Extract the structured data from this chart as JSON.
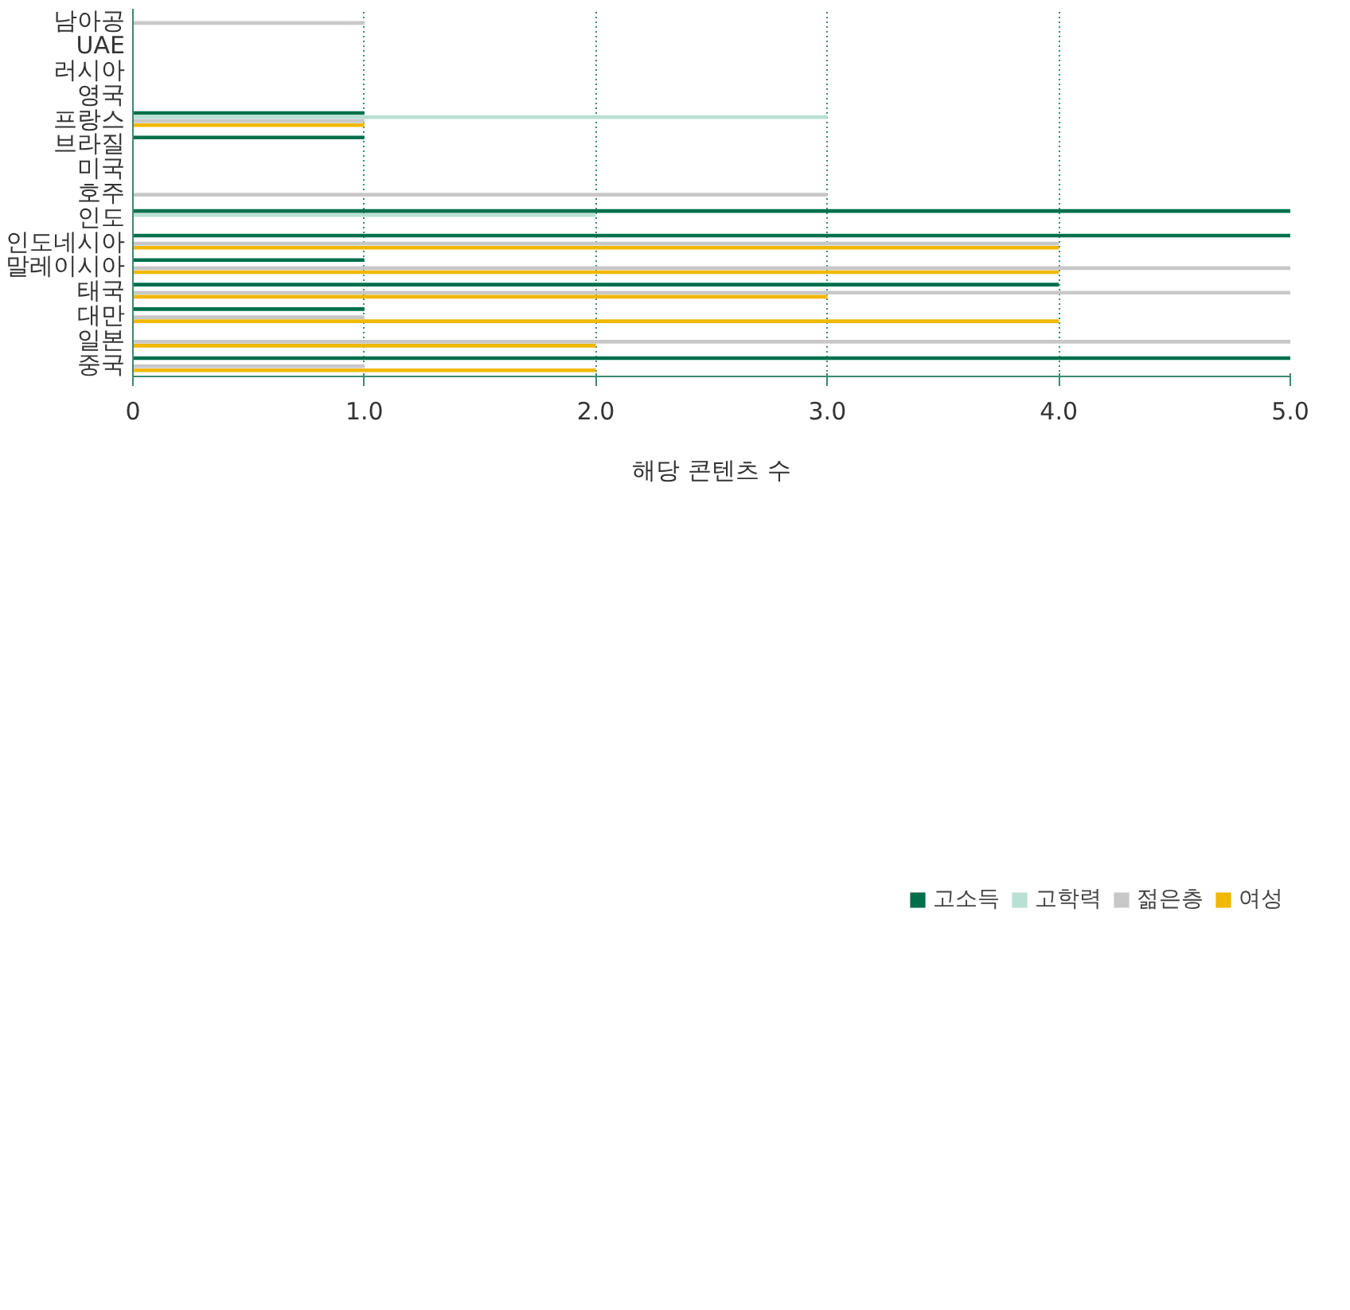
{
  "chart_data": {
    "type": "bar",
    "orientation": "horizontal",
    "xlabel": "해당 콘텐츠 수",
    "categories": [
      "남아공",
      "UAE",
      "러시아",
      "영국",
      "프랑스",
      "브라질",
      "미국",
      "호주",
      "인도",
      "인도네시아",
      "말레이시아",
      "태국",
      "대만",
      "일본",
      "중국"
    ],
    "series": [
      {
        "name": "고소득",
        "color": "#00704a",
        "values": [
          0,
          0,
          0,
          0,
          1,
          1,
          0,
          0,
          5,
          5,
          1,
          4,
          1,
          0,
          5
        ]
      },
      {
        "name": "고학력",
        "color": "#b9e0d4",
        "values": [
          0,
          0,
          0,
          0,
          3,
          0,
          0,
          0,
          2,
          0,
          0,
          0,
          0,
          0,
          0
        ]
      },
      {
        "name": "젊은층",
        "color": "#c8c8c8",
        "values": [
          1,
          0,
          0,
          0,
          1,
          0,
          0,
          3,
          0,
          4,
          5,
          5,
          1,
          5,
          1
        ]
      },
      {
        "name": "여성",
        "color": "#f0b800",
        "values": [
          0,
          0,
          0,
          0,
          1,
          0,
          0,
          0,
          0,
          4,
          4,
          3,
          4,
          2,
          2
        ]
      }
    ],
    "xlim": [
      0,
      5
    ],
    "xticks": [
      0,
      {
        "value": 1,
        "label": "1.0"
      },
      {
        "value": 2,
        "label": "2.0"
      },
      {
        "value": 3,
        "label": "3.0"
      },
      {
        "value": 4,
        "label": "4.0"
      },
      {
        "value": 5,
        "label": "5.0"
      }
    ],
    "grid": "x",
    "legend": "bottom right"
  }
}
